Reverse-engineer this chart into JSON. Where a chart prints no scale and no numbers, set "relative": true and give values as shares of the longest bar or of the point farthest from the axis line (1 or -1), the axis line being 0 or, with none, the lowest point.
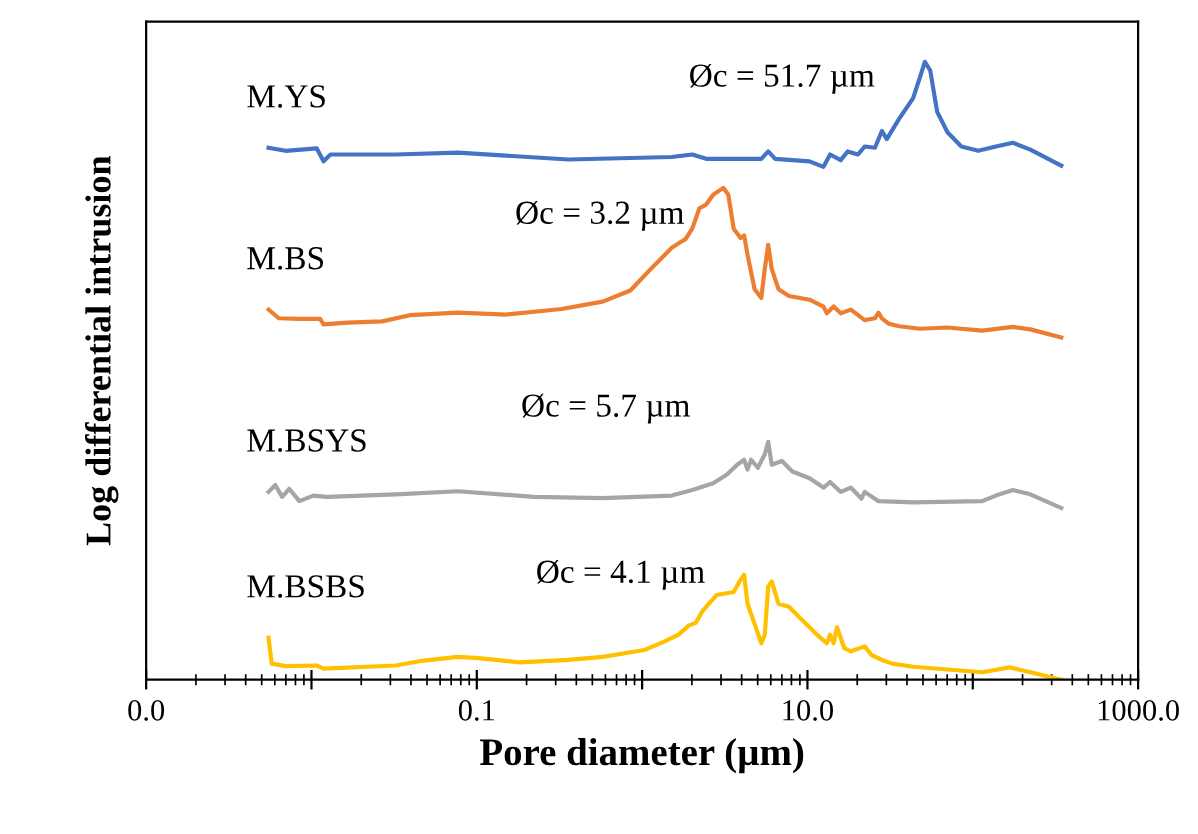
{
  "chart_data": {
    "type": "line",
    "relative": true,
    "log": "x",
    "xlabel": "Pore diameter (µm)",
    "ylabel": "Log differential intrusion",
    "xlim": [
      0.001,
      1000
    ],
    "xticks": [
      {
        "value": 0.001,
        "label": "0.0"
      },
      {
        "value": 0.01,
        "label": null
      },
      {
        "value": 0.1,
        "label": "0.1"
      },
      {
        "value": 1,
        "label": null
      },
      {
        "value": 10,
        "label": "10.0"
      },
      {
        "value": 100,
        "label": null
      },
      {
        "value": 1000,
        "label": "1000.0"
      }
    ],
    "grid": false,
    "legend": false,
    "marker": "none",
    "line_style": "solid",
    "series": [
      {
        "name": "M.YS",
        "color": "#4472c4",
        "x": [
          0.0055,
          0.00698,
          0.01075,
          0.01183,
          0.01303,
          0.0324,
          0.0769,
          0.358,
          1.51,
          2.01,
          2.44,
          5.26,
          5.79,
          6.38,
          10.3,
          12.5,
          13.7,
          15.9,
          17.5,
          20.2,
          22.2,
          25.6,
          28.2,
          30.2,
          35.9,
          43.5,
          47.9,
          51.3,
          55.3,
          60.9,
          70.3,
          85.3,
          108,
          138,
          175,
          223,
          343
        ],
        "values": [
          0.861,
          0.856,
          0.86,
          0.839,
          0.85,
          0.85,
          0.853,
          0.842,
          0.846,
          0.85,
          0.843,
          0.843,
          0.855,
          0.843,
          0.839,
          0.83,
          0.85,
          0.841,
          0.855,
          0.85,
          0.863,
          0.861,
          0.888,
          0.875,
          0.908,
          0.941,
          0.975,
          1,
          0.986,
          0.919,
          0.886,
          0.863,
          0.856,
          0.863,
          0.869,
          0.858,
          0.832
        ]
      },
      {
        "name": "M.BS",
        "color": "#ed7d31",
        "x": [
          0.0055,
          0.00634,
          0.00845,
          0.01127,
          0.01183,
          0.01656,
          0.0268,
          0.0393,
          0.0769,
          0.151,
          0.325,
          0.578,
          0.849,
          1.13,
          1.51,
          1.75,
          1.83,
          2.01,
          2.22,
          2.44,
          2.69,
          3.1,
          3.32,
          3.58,
          3.94,
          4.14,
          4.34,
          4.79,
          5.26,
          5.52,
          5.79,
          6.08,
          6.68,
          7.73,
          10.3,
          12.5,
          13.1,
          14.4,
          15.9,
          18.3,
          22.2,
          25.6,
          26.9,
          28.2,
          31.1,
          35.9,
          47.9,
          70.3,
          114,
          175,
          223,
          343
        ],
        "values": [
          0.599,
          0.585,
          0.584,
          0.584,
          0.575,
          0.578,
          0.58,
          0.59,
          0.594,
          0.591,
          0.6,
          0.612,
          0.63,
          0.665,
          0.699,
          0.71,
          0.713,
          0.73,
          0.763,
          0.769,
          0.785,
          0.796,
          0.785,
          0.73,
          0.715,
          0.719,
          0.688,
          0.632,
          0.618,
          0.665,
          0.704,
          0.665,
          0.632,
          0.621,
          0.615,
          0.604,
          0.593,
          0.604,
          0.593,
          0.599,
          0.582,
          0.585,
          0.594,
          0.585,
          0.576,
          0.572,
          0.568,
          0.57,
          0.565,
          0.571,
          0.567,
          0.554
        ]
      },
      {
        "name": "M.BSYS",
        "color": "#a5a5a5",
        "x": [
          0.0055,
          0.00604,
          0.00665,
          0.00733,
          0.00845,
          0.01026,
          0.01242,
          0.0324,
          0.0769,
          0.221,
          0.578,
          1.51,
          2.01,
          2.69,
          3.26,
          3.76,
          4.14,
          4.34,
          4.56,
          5.01,
          5.52,
          5.79,
          6.08,
          7.01,
          8.11,
          10.3,
          12.5,
          13.7,
          15.9,
          18.3,
          21.2,
          22.2,
          26.9,
          43.5,
          114,
          138,
          175,
          223,
          343
        ],
        "values": [
          0.304,
          0.315,
          0.296,
          0.309,
          0.289,
          0.298,
          0.296,
          0.3,
          0.305,
          0.296,
          0.294,
          0.298,
          0.307,
          0.318,
          0.332,
          0.348,
          0.356,
          0.34,
          0.356,
          0.343,
          0.365,
          0.385,
          0.348,
          0.354,
          0.337,
          0.326,
          0.311,
          0.32,
          0.304,
          0.311,
          0.293,
          0.304,
          0.289,
          0.287,
          0.289,
          0.298,
          0.307,
          0.3,
          0.278
        ]
      },
      {
        "name": "M.BSBS",
        "color": "#ffc000",
        "x": [
          0.0055,
          0.00575,
          0.00698,
          0.01075,
          0.01183,
          0.0324,
          0.0476,
          0.0769,
          0.1026,
          0.183,
          0.358,
          0.578,
          1.03,
          1.37,
          1.66,
          1.92,
          2.11,
          2.33,
          2.82,
          3.58,
          3.94,
          4.14,
          4.34,
          4.79,
          5.26,
          5.52,
          5.79,
          6.08,
          6.68,
          7.73,
          8.93,
          10.3,
          11.4,
          13.1,
          13.7,
          14.4,
          15.1,
          16.7,
          18.3,
          22.2,
          24.4,
          28.2,
          32.6,
          43.5,
          114,
          167,
          223,
          343
        ],
        "values": [
          0.068,
          0.026,
          0.022,
          0.023,
          0.018,
          0.023,
          0.031,
          0.037,
          0.035,
          0.028,
          0.032,
          0.037,
          0.048,
          0.062,
          0.073,
          0.088,
          0.092,
          0.112,
          0.137,
          0.142,
          0.162,
          0.17,
          0.123,
          0.09,
          0.059,
          0.073,
          0.151,
          0.159,
          0.123,
          0.118,
          0.101,
          0.085,
          0.073,
          0.059,
          0.073,
          0.059,
          0.085,
          0.051,
          0.046,
          0.054,
          0.04,
          0.032,
          0.026,
          0.021,
          0.012,
          0.02,
          0.012,
          0
        ]
      }
    ],
    "annotations": [
      {
        "text": "Øc = 51.7 µm",
        "x": 51.3,
        "y": 1
      },
      {
        "text": "Øc = 3.2 µm",
        "x": 3.1,
        "y": 0.796
      },
      {
        "text": "Øc = 5.7 µm",
        "x": 5.79,
        "y": 0.385
      },
      {
        "text": "Øc = 4.1 µm",
        "x": 4.14,
        "y": 0.17
      }
    ]
  }
}
